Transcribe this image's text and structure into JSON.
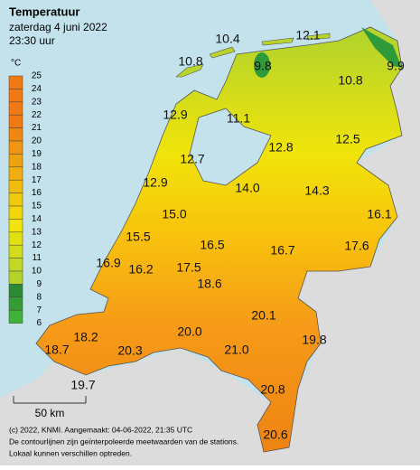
{
  "header": {
    "title": "Temperatuur",
    "date": "zaterdag 4 juni 2022",
    "time": "23:30 uur"
  },
  "legend": {
    "unit": "°C",
    "values": [
      25,
      24,
      23,
      22,
      21,
      20,
      19,
      18,
      17,
      16,
      15,
      14,
      13,
      12,
      11,
      10,
      9,
      8,
      7,
      6
    ]
  },
  "stations": [
    "10.4",
    "12.1",
    "10.8",
    "9.8",
    "9.9",
    "10.8",
    "12.9",
    "11.1",
    "12.8",
    "12.5",
    "12.7",
    "12.9",
    "14.0",
    "14.3",
    "15.0",
    "16.1",
    "15.5",
    "16.5",
    "16.7",
    "17.6",
    "16.9",
    "16.2",
    "17.5",
    "18.6",
    "18.2",
    "20.3",
    "20.0",
    "20.1",
    "21.0",
    "19.8",
    "18.7",
    "19.7",
    "20.8",
    "20.6"
  ],
  "scale": "50 km",
  "footer": [
    "(c) 2022, KNMI. Aangemaakt: 04-06-2022, 21:35 UTC",
    "De contourlijnen zijn geïnterpoleerde meetwaarden van de stations.",
    "Lokaal kunnen verschillen optreden."
  ]
}
